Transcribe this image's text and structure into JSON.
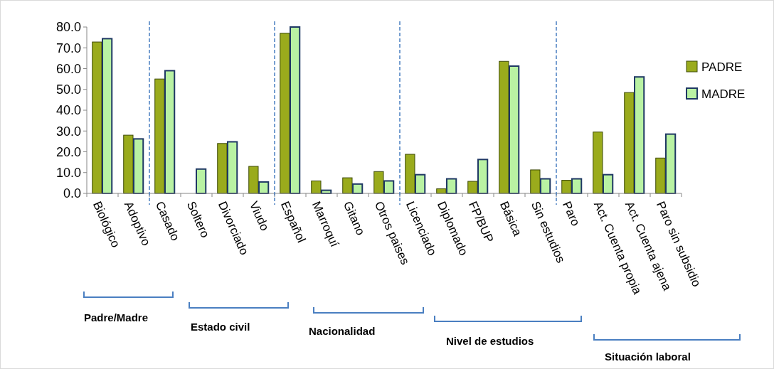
{
  "chart_data": {
    "type": "bar",
    "categories": [
      "Biológico",
      "Adoptivo",
      "Casado",
      "Soltero",
      "Divorciado",
      "Viudo",
      "Español",
      "Marroquí",
      "Gitano",
      "Otros paises",
      "Licenciado",
      "Diplomado",
      "FP/BUP",
      "Básica",
      "Sin estudios",
      "Paro",
      "Act. Cuenta propia",
      "Act. Cuenta ajena",
      "Paro sin subsidio"
    ],
    "series": [
      {
        "name": "PADRE",
        "color": "#9aab1c",
        "values": [
          72.8,
          28.0,
          55.0,
          null,
          24.0,
          13.0,
          77.0,
          6.0,
          7.5,
          10.5,
          18.8,
          2.2,
          5.8,
          63.5,
          11.3,
          6.3,
          29.5,
          48.5,
          17.0
        ]
      },
      {
        "name": "MADRE",
        "color": "#b9f2a3",
        "values": [
          74.4,
          26.2,
          59.0,
          11.7,
          24.8,
          5.5,
          80.0,
          1.5,
          4.5,
          6.0,
          9.0,
          7.0,
          16.3,
          61.2,
          7.0,
          7.0,
          9.0,
          56.0,
          28.5
        ]
      }
    ],
    "ylim": [
      0,
      80
    ],
    "yticks": [
      {
        "value": 0,
        "label": "0.0"
      },
      {
        "value": 10,
        "label": "10.0"
      },
      {
        "value": 20,
        "label": "20.0"
      },
      {
        "value": 30,
        "label": "30.0"
      },
      {
        "value": 40,
        "label": "40.0"
      },
      {
        "value": 50,
        "label": "50.0"
      },
      {
        "value": 60,
        "label": "60.0"
      },
      {
        "value": 70,
        "label": "70.0"
      },
      {
        "value": 80,
        "label": "80.0"
      }
    ],
    "grid": false,
    "legend": "right",
    "annotations": [
      "Padre/Madre",
      "Estado civil",
      "Nacionalidad",
      "Nivel de estudios",
      "Situación laboral"
    ]
  }
}
